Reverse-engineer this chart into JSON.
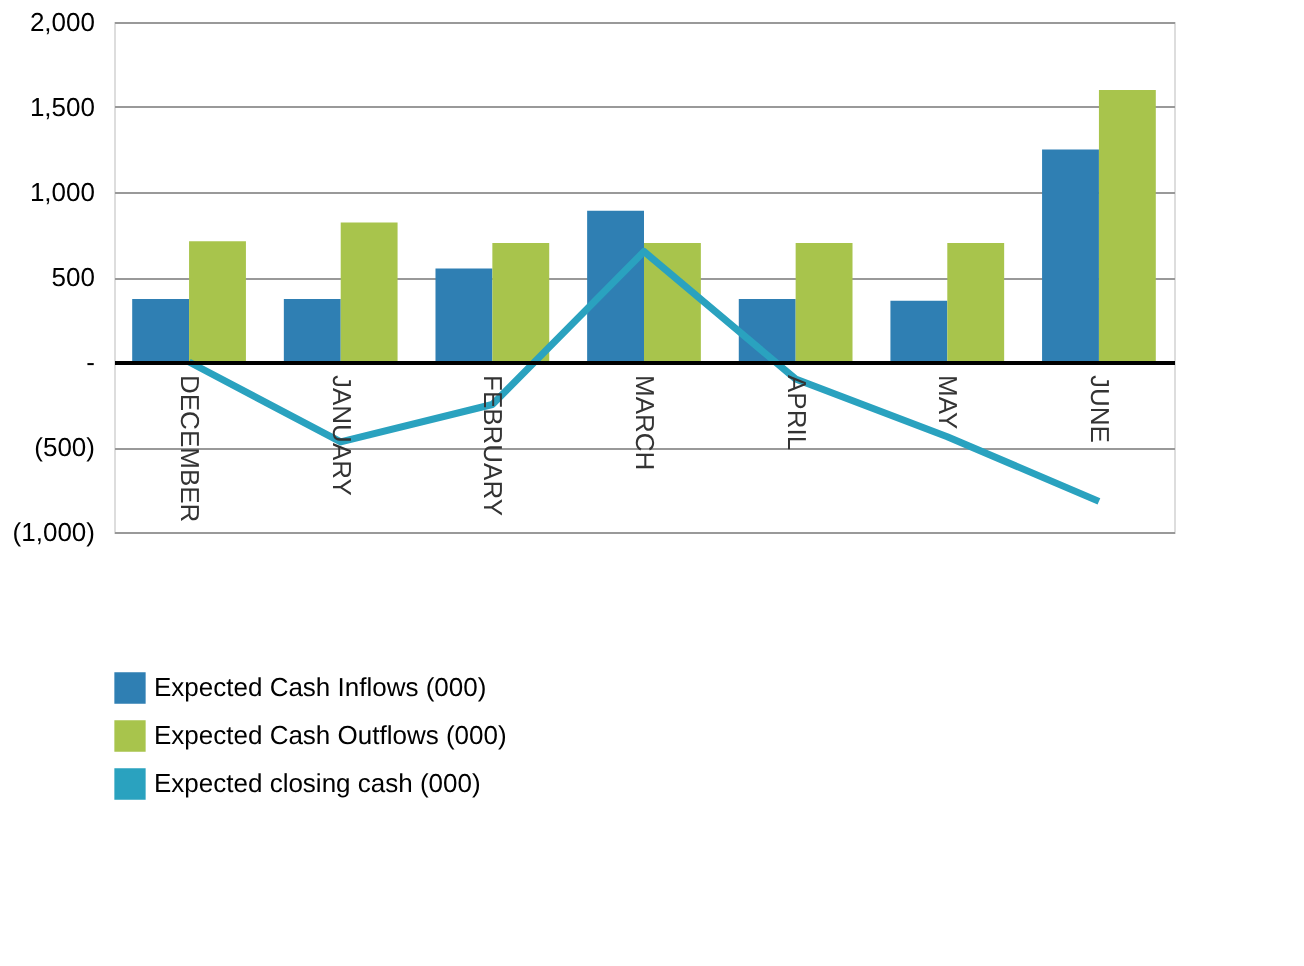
{
  "chart_data": {
    "type": "bar",
    "categories": [
      "DECEMBER",
      "JANUARY",
      "FEBRUARY",
      "MARCH",
      "APRIL",
      "MAY",
      "JUNE"
    ],
    "series": [
      {
        "name": "Expected Cash Inflows (000)",
        "color": "#2f7fb3",
        "values": [
          370,
          370,
          550,
          890,
          370,
          360,
          1250
        ]
      },
      {
        "name": "Expected Cash Outflows (000)",
        "color": "#a8c44c",
        "values": [
          710,
          820,
          700,
          700,
          700,
          700,
          1600
        ]
      },
      {
        "name": "Expected closing cash (000)",
        "type": "line",
        "color": "#2aa2bf",
        "values": [
          0,
          -470,
          -250,
          650,
          -100,
          -440,
          -820
        ]
      }
    ],
    "ylim": [
      -1000,
      2000
    ],
    "yticks": [
      {
        "value": 2000,
        "label": "2,000"
      },
      {
        "value": 1500,
        "label": "1,500"
      },
      {
        "value": 1000,
        "label": "1,000"
      },
      500,
      {
        "value": 0,
        "label": "-"
      },
      {
        "value": -500,
        "label": "(500)"
      },
      {
        "value": -1000,
        "label": "(1,000)"
      }
    ],
    "grid": "y",
    "legend": "bottom",
    "marker": "none",
    "line_style": "solid"
  }
}
